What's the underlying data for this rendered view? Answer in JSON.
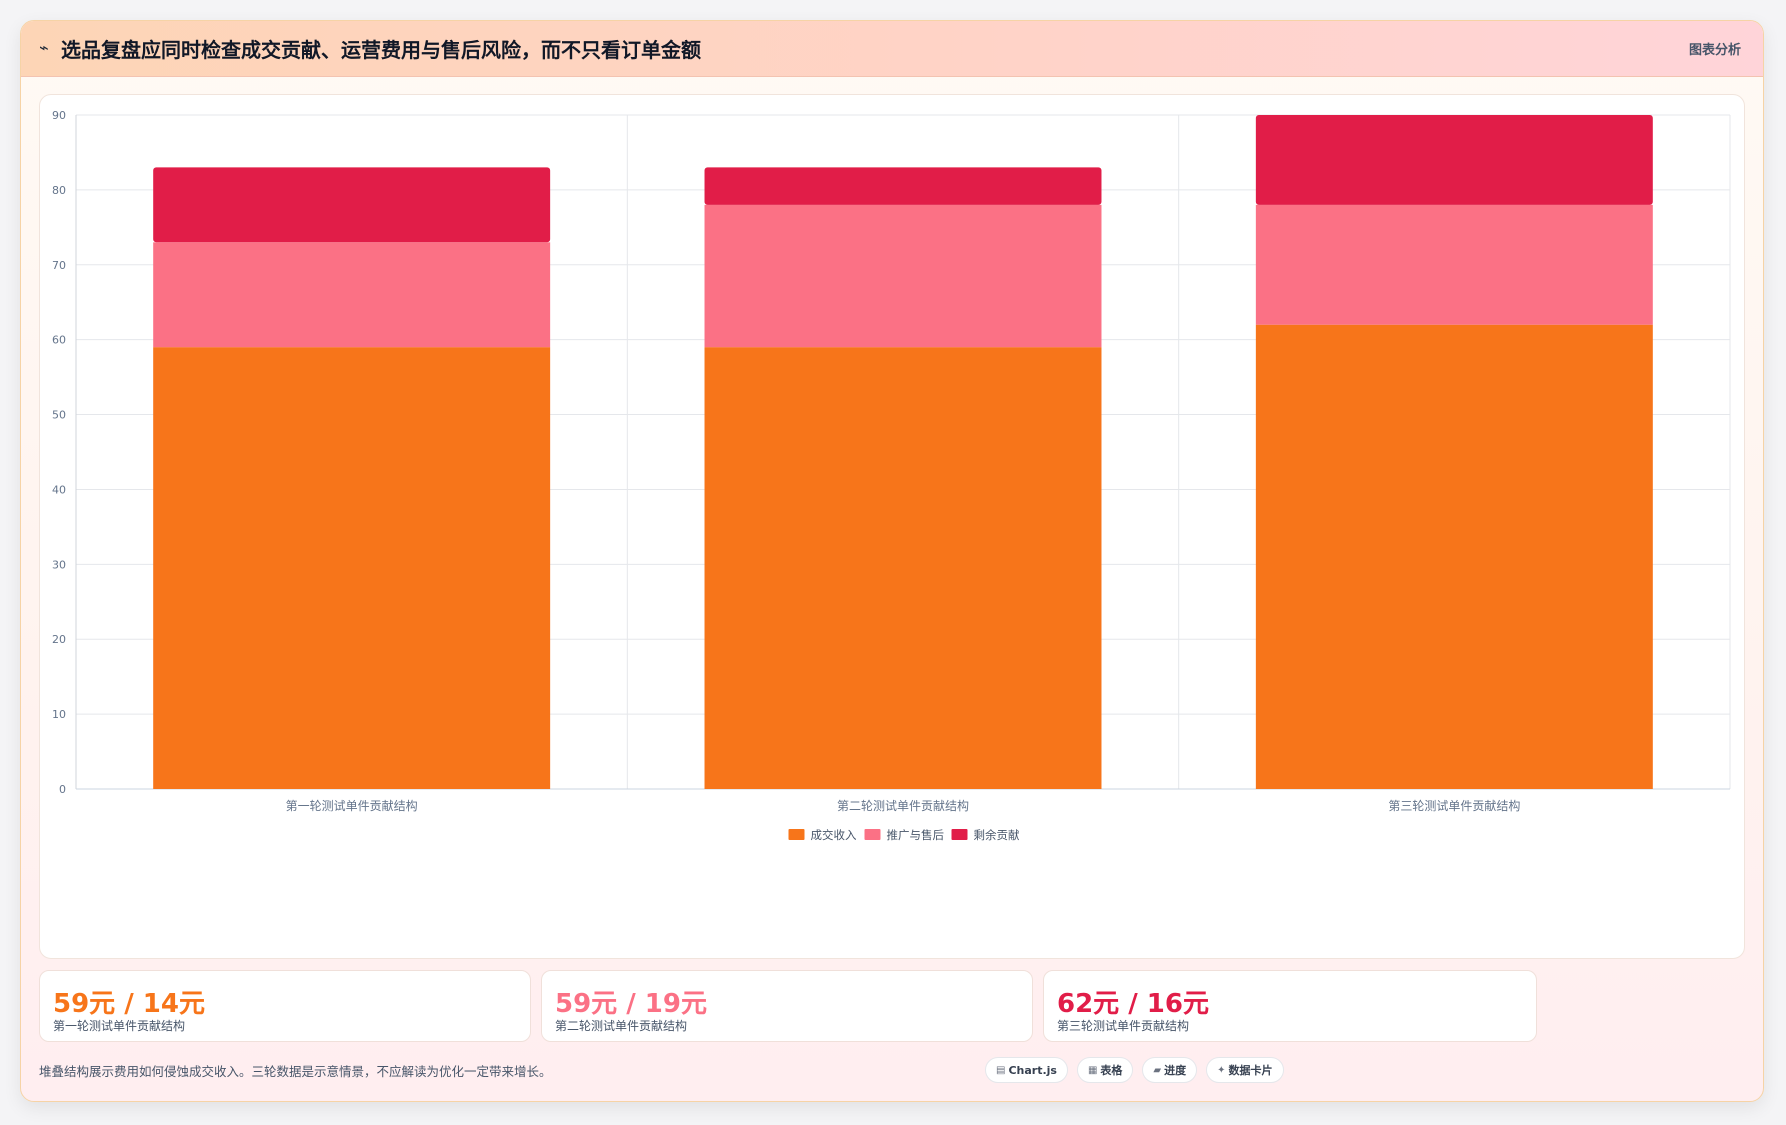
{
  "header": {
    "icon": "trend-line-icon",
    "title": "选品复盘应同时检查成交贡献、运营费用与售后风险，而不只看订单金额",
    "tag": "图表分析"
  },
  "colors": {
    "revenue": "#f7751a",
    "promo": "#fb7185",
    "remain": "#e11d48",
    "grid": "#e5e7eb",
    "axis_text": "#64748b"
  },
  "chart_data": {
    "type": "bar",
    "stacked": true,
    "categories": [
      "第一轮测试单件贡献结构",
      "第二轮测试单件贡献结构",
      "第三轮测试单件贡献结构"
    ],
    "series": [
      {
        "name": "成交收入",
        "values": [
          59,
          59,
          62
        ]
      },
      {
        "name": "推广与售后",
        "values": [
          14,
          19,
          16
        ]
      },
      {
        "name": "剩余贡献",
        "values": [
          10,
          5,
          12
        ]
      }
    ],
    "ylim": [
      0,
      90
    ],
    "yticks": [
      "0",
      "10",
      "20",
      "30",
      "40",
      "50",
      "60",
      "70",
      "80",
      "90"
    ],
    "grid": true,
    "legend_position": "bottom"
  },
  "stats": [
    {
      "value": "59元 / 14元",
      "label": "第一轮测试单件贡献结构",
      "color": "#f7751a"
    },
    {
      "value": "59元 / 19元",
      "label": "第二轮测试单件贡献结构",
      "color": "#fb7185"
    },
    {
      "value": "62元 / 16元",
      "label": "第三轮测试单件贡献结构",
      "color": "#e11d48"
    }
  ],
  "footnote": "堆叠结构展示费用如何侵蚀成交收入。三轮数据是示意情景，不应解读为优化一定带来增长。",
  "tags": [
    {
      "icon": "chart-icon",
      "glyph": "▤",
      "label": "Chart.js"
    },
    {
      "icon": "table-icon",
      "glyph": "▦",
      "label": "表格"
    },
    {
      "icon": "progress-icon",
      "glyph": "▰",
      "label": "进度"
    },
    {
      "icon": "data-card-icon",
      "glyph": "✦",
      "label": "数据卡片"
    }
  ]
}
